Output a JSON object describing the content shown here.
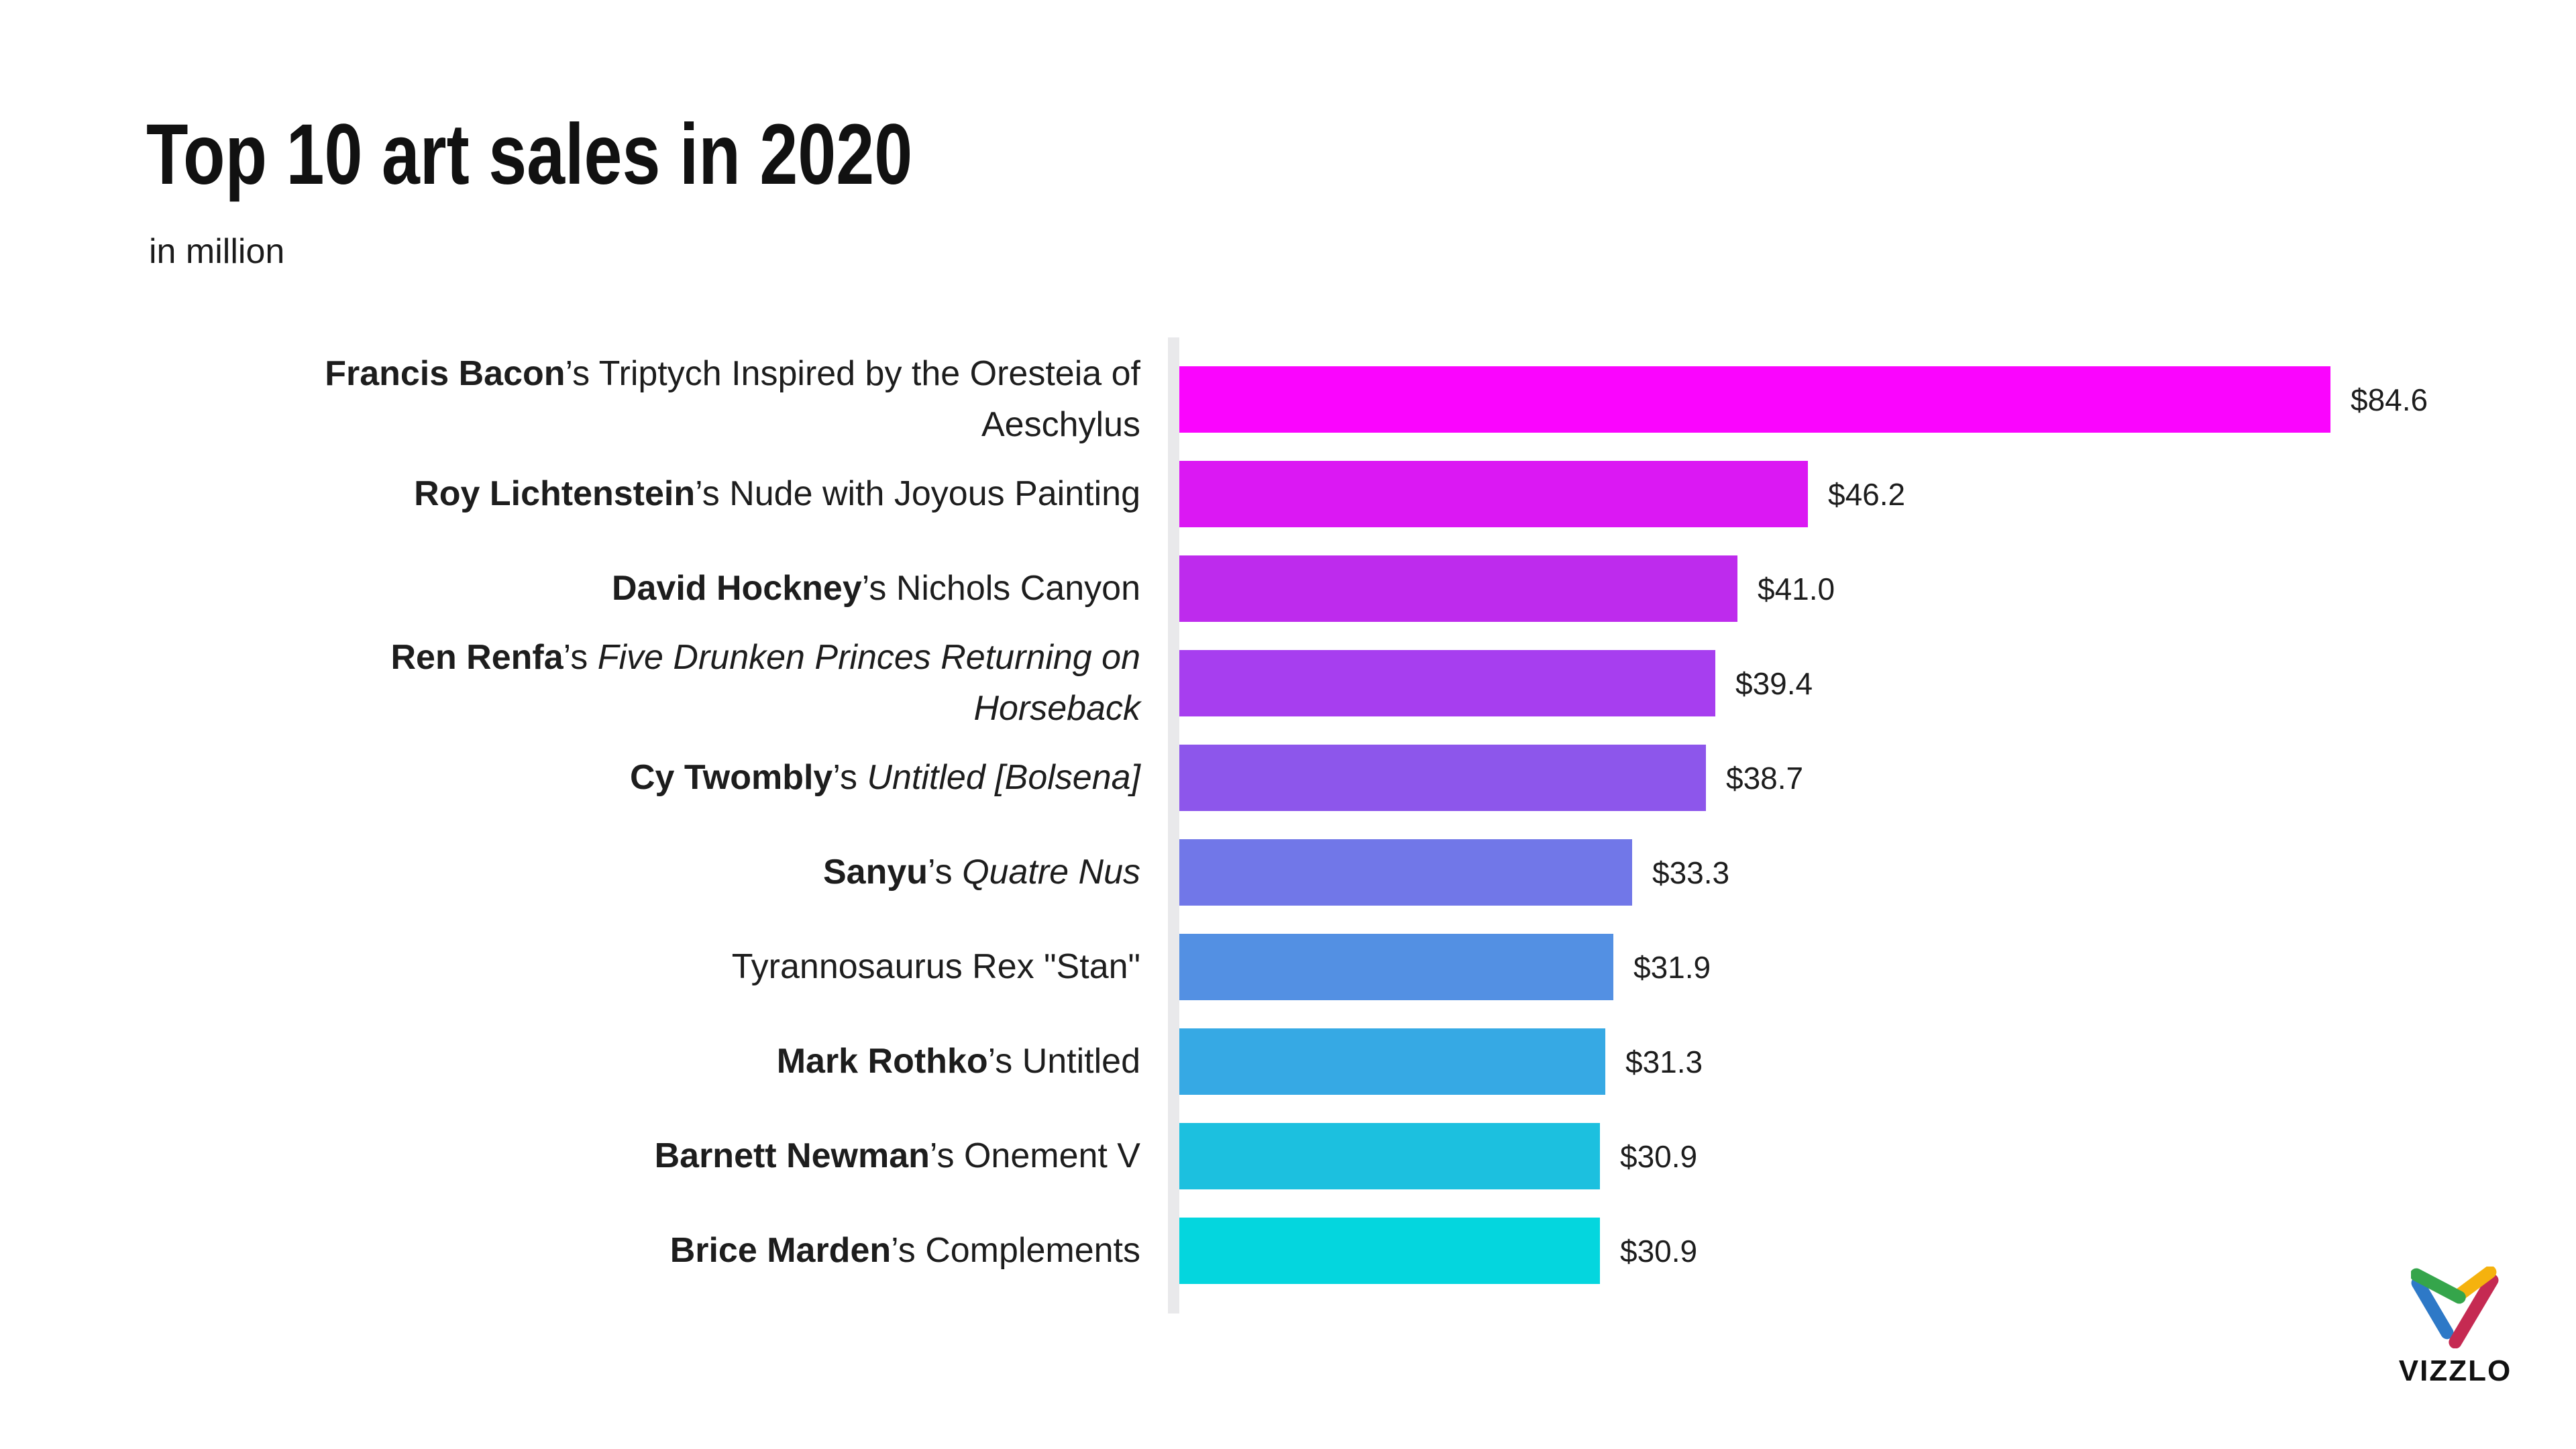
{
  "page": {
    "background": "#ffffff"
  },
  "header": {
    "title": "Top 10 art sales in 2020",
    "subtitle": "in million"
  },
  "watermark": {
    "brand": "VIZZLO",
    "logo_icon": "vizzlo-v-mark",
    "logo_colors": {
      "green": "#35A54B",
      "blue": "#2E79C7",
      "yellow": "#F5B20E",
      "red": "#C52A52"
    }
  },
  "chart_data": {
    "type": "bar",
    "orientation": "horizontal",
    "title": "Top 10 art sales in 2020",
    "subtitle": "in million",
    "unit": "million USD",
    "xlim": [
      0,
      84.6
    ],
    "grid": false,
    "legend": false,
    "axis_line_color": "#E9E9EB",
    "text_color": "#1d1d1d",
    "categories": [
      "Francis Bacon’s Triptych Inspired by the Oresteia of Aeschylus",
      "Roy Lichtenstein’s Nude with Joyous Painting",
      "David Hockney’s Nichols Canyon",
      "Ren Renfa’s Five Drunken Princes Returning on Horseback",
      "Cy Twombly’s Untitled [Bolsena]",
      "Sanyu’s Quatre Nus",
      "Tyrannosaurus Rex \"Stan\"",
      "Mark Rothko’s Untitled",
      "Barnett Newman’s Onement V",
      "Brice Marden’s Complements"
    ],
    "values": [
      84.6,
      46.2,
      41.0,
      39.4,
      38.7,
      33.3,
      31.9,
      31.3,
      30.9,
      30.9
    ],
    "value_labels": [
      "$84.6",
      "$46.2",
      "$41.0",
      "$39.4",
      "$38.7",
      "$33.3",
      "$31.9",
      "$31.3",
      "$30.9",
      "$30.9"
    ],
    "bars": [
      {
        "artist": "Francis Bacon",
        "sep": "’s ",
        "work": "Triptych Inspired by the Oresteia of\nAeschylus",
        "italic": false,
        "value": 84.6,
        "value_label": "$84.6",
        "color": "#FA05FE"
      },
      {
        "artist": "Roy Lichtenstein",
        "sep": "’s ",
        "work": "Nude with Joyous Painting",
        "italic": false,
        "value": 46.2,
        "value_label": "$46.2",
        "color": "#DB18F3"
      },
      {
        "artist": "David Hockney",
        "sep": "’s ",
        "work": "Nichols Canyon",
        "italic": false,
        "value": 41.0,
        "value_label": "$41.0",
        "color": "#BE2BED"
      },
      {
        "artist": "Ren Renfa",
        "sep": "’s ",
        "work": "Five Drunken Princes Returning on\nHorseback",
        "italic": true,
        "value": 39.4,
        "value_label": "$39.4",
        "color": "#A73EEF"
      },
      {
        "artist": "Cy Twombly",
        "sep": "’s ",
        "work": "Untitled [Bolsena]",
        "italic": true,
        "value": 38.7,
        "value_label": "$38.7",
        "color": "#8D56EB"
      },
      {
        "artist": "Sanyu",
        "sep": "’s ",
        "work": "Quatre Nus",
        "italic": true,
        "value": 33.3,
        "value_label": "$33.3",
        "color": "#7177E8"
      },
      {
        "artist": "",
        "sep": "",
        "work": "Tyrannosaurus Rex \"Stan\"",
        "italic": false,
        "value": 31.9,
        "value_label": "$31.9",
        "color": "#5390E3"
      },
      {
        "artist": "Mark Rothko",
        "sep": "’s ",
        "work": "Untitled",
        "italic": false,
        "value": 31.3,
        "value_label": "$31.3",
        "color": "#36A9E4"
      },
      {
        "artist": "Barnett Newman",
        "sep": "’s ",
        "work": "Onement V",
        "italic": false,
        "value": 30.9,
        "value_label": "$30.9",
        "color": "#1CC0DF"
      },
      {
        "artist": "Brice Marden",
        "sep": "’s ",
        "work": "Complements",
        "italic": false,
        "value": 30.9,
        "value_label": "$30.9",
        "color": "#04D6DE"
      }
    ]
  }
}
